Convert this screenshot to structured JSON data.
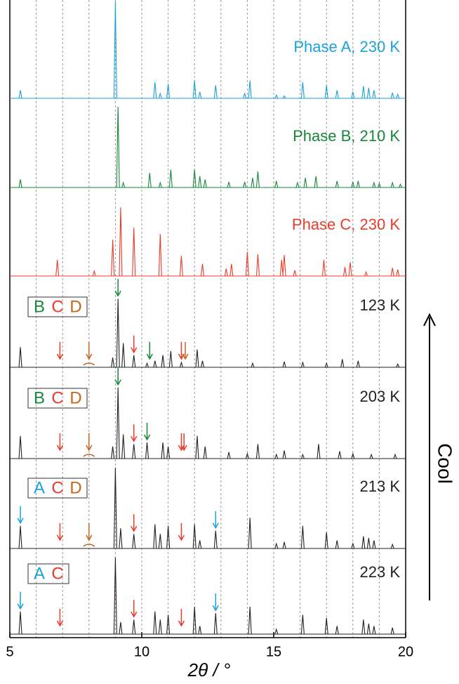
{
  "chart_data": {
    "type": "line",
    "xlabel": "2θ / °",
    "xlim": [
      5,
      20
    ],
    "xticks": [
      5,
      10,
      15,
      20
    ],
    "grid_x": [
      6,
      7,
      8,
      9,
      10,
      11,
      12,
      13,
      14,
      15,
      16,
      17,
      18,
      19
    ],
    "side_label": "Cool",
    "series": [
      {
        "name": "Phase A, 230 K",
        "color": "#1ba1db",
        "x": [
          5.4,
          9.0,
          10.5,
          10.7,
          11.0,
          12.0,
          12.2,
          12.8,
          13.9,
          14.1,
          15.1,
          15.4,
          16.1,
          17.0,
          17.4,
          18.0,
          18.4,
          18.6,
          18.8,
          19.5,
          19.7
        ],
        "values": [
          10,
          120,
          20,
          6,
          18,
          22,
          8,
          16,
          6,
          22,
          4,
          3,
          20,
          16,
          10,
          8,
          15,
          13,
          10,
          7,
          5
        ]
      },
      {
        "name": "Phase B, 210 K",
        "color": "#17873a",
        "x": [
          5.4,
          9.1,
          9.3,
          10.3,
          10.7,
          11.1,
          12.0,
          12.2,
          12.4,
          13.3,
          13.9,
          14.2,
          14.4,
          15.1,
          15.9,
          16.2,
          16.6,
          17.4,
          18.0,
          18.2,
          18.8,
          19.0,
          19.5,
          19.8
        ],
        "values": [
          10,
          100,
          6,
          18,
          6,
          22,
          22,
          14,
          10,
          7,
          7,
          12,
          20,
          8,
          6,
          12,
          14,
          8,
          7,
          8,
          6,
          5,
          6,
          4
        ]
      },
      {
        "name": "Phase C, 230 K",
        "color": "#ec3b2a",
        "x": [
          6.8,
          8.2,
          8.9,
          9.2,
          9.7,
          10.7,
          11.5,
          12.3,
          13.2,
          13.4,
          14.0,
          14.4,
          15.3,
          15.4,
          15.8,
          16.9,
          17.7,
          17.9,
          18.5,
          19.5,
          19.7
        ],
        "values": [
          20,
          6,
          45,
          85,
          60,
          52,
          25,
          15,
          9,
          15,
          30,
          27,
          20,
          26,
          7,
          20,
          11,
          17,
          5,
          10,
          8
        ]
      },
      {
        "name": "123 K",
        "color": "#222222",
        "letters": [
          {
            "text": "B",
            "color": "#17873a"
          },
          {
            "text": "C",
            "color": "#ec3b2a"
          },
          {
            "text": "D",
            "color": "#c8651b"
          }
        ],
        "arrows": [
          {
            "x": 6.9,
            "color": "#ec3b2a"
          },
          {
            "x": 8.0,
            "color": "#c8651b"
          },
          {
            "x": 9.1,
            "color": "#17873a"
          },
          {
            "x": 9.7,
            "color": "#ec3b2a"
          },
          {
            "x": 10.3,
            "color": "#17873a"
          },
          {
            "x": 11.5,
            "color": "#ec3b2a"
          },
          {
            "x": 11.65,
            "color": "#c8651b"
          }
        ],
        "x": [
          5.4,
          8.9,
          9.1,
          9.3,
          9.7,
          10.2,
          10.5,
          10.8,
          11.1,
          11.5,
          12.1,
          12.3,
          14.2,
          15.4,
          16.1,
          17.0,
          17.6,
          18.2,
          19.7
        ],
        "values": [
          25,
          12,
          85,
          30,
          15,
          5,
          8,
          15,
          20,
          6,
          22,
          8,
          5,
          7,
          6,
          5,
          10,
          8,
          4
        ]
      },
      {
        "name": "203 K",
        "color": "#222222",
        "letters": [
          {
            "text": "B",
            "color": "#17873a"
          },
          {
            "text": "C",
            "color": "#ec3b2a"
          },
          {
            "text": "D",
            "color": "#c8651b"
          }
        ],
        "arrows": [
          {
            "x": 6.9,
            "color": "#ec3b2a"
          },
          {
            "x": 8.0,
            "color": "#c8651b"
          },
          {
            "x": 9.1,
            "color": "#17873a"
          },
          {
            "x": 9.7,
            "color": "#ec3b2a"
          },
          {
            "x": 10.2,
            "color": "#17873a"
          },
          {
            "x": 11.5,
            "color": "#ec3b2a"
          },
          {
            "x": 11.6,
            "color": "#ec3b2a"
          }
        ],
        "x": [
          5.4,
          8.9,
          9.1,
          9.3,
          9.7,
          10.2,
          10.8,
          11.0,
          12.1,
          12.4,
          13.3,
          14.0,
          14.4,
          15.1,
          15.4,
          16.1,
          16.7,
          17.5,
          18.0,
          18.7,
          19.6
        ],
        "values": [
          28,
          15,
          88,
          30,
          18,
          20,
          20,
          15,
          28,
          15,
          8,
          6,
          18,
          5,
          10,
          5,
          18,
          9,
          6,
          5,
          5
        ]
      },
      {
        "name": "213 K",
        "color": "#222222",
        "letters": [
          {
            "text": "A",
            "color": "#1ba1db"
          },
          {
            "text": "C",
            "color": "#ec3b2a"
          },
          {
            "text": "D",
            "color": "#c8651b"
          }
        ],
        "arrows": [
          {
            "x": 5.4,
            "color": "#1ba1db"
          },
          {
            "x": 6.9,
            "color": "#ec3b2a"
          },
          {
            "x": 8.0,
            "color": "#c8651b"
          },
          {
            "x": 9.7,
            "color": "#ec3b2a"
          },
          {
            "x": 11.5,
            "color": "#ec3b2a"
          },
          {
            "x": 12.8,
            "color": "#1ba1db"
          }
        ],
        "x": [
          5.4,
          9.0,
          9.2,
          9.7,
          10.5,
          10.7,
          11.0,
          12.0,
          12.2,
          12.8,
          14.1,
          15.1,
          15.4,
          16.1,
          17.0,
          17.4,
          18.0,
          18.4,
          18.6,
          18.8,
          19.5
        ],
        "values": [
          28,
          100,
          25,
          18,
          30,
          18,
          28,
          30,
          10,
          22,
          38,
          6,
          8,
          28,
          20,
          10,
          6,
          15,
          13,
          10,
          5
        ]
      },
      {
        "name": "223 K",
        "color": "#222222",
        "letters": [
          {
            "text": "A",
            "color": "#1ba1db"
          },
          {
            "text": "C",
            "color": "#ec3b2a"
          }
        ],
        "arrows": [
          {
            "x": 5.4,
            "color": "#1ba1db"
          },
          {
            "x": 6.9,
            "color": "#ec3b2a"
          },
          {
            "x": 9.7,
            "color": "#ec3b2a"
          },
          {
            "x": 11.5,
            "color": "#ec3b2a"
          },
          {
            "x": 12.8,
            "color": "#1ba1db"
          }
        ],
        "x": [
          5.4,
          9.0,
          9.2,
          9.7,
          10.5,
          10.7,
          11.0,
          12.0,
          12.2,
          12.8,
          14.1,
          15.1,
          16.1,
          17.0,
          17.4,
          18.4,
          18.6,
          18.8,
          19.5
        ],
        "values": [
          28,
          95,
          15,
          18,
          28,
          18,
          24,
          34,
          10,
          26,
          34,
          6,
          24,
          20,
          10,
          18,
          13,
          10,
          8
        ]
      }
    ]
  }
}
